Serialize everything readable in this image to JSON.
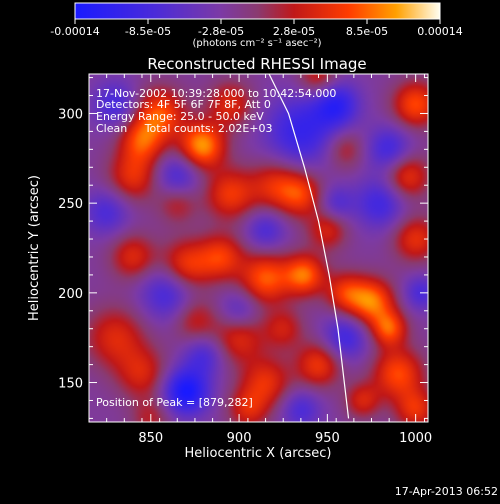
{
  "chart_data": {
    "type": "heatmap",
    "title": "Reconstructed RHESSI Image",
    "xlabel": "Heliocentric X (arcsec)",
    "ylabel": "Heliocentric Y (arcsec)",
    "xlim": [
      815,
      1007
    ],
    "ylim": [
      128,
      322
    ],
    "xticks": [
      "850",
      "900",
      "950",
      "1000"
    ],
    "yticks": [
      "150",
      "200",
      "250",
      "300"
    ],
    "colorbar": {
      "ticks": [
        "-0.00014",
        "-8.5e-05",
        "-2.8e-05",
        "2.8e-05",
        "8.5e-05",
        "0.00014"
      ],
      "unit_label": "(photons cm⁻² s⁻¹ asec⁻²)",
      "range": [
        -0.00014,
        0.00014
      ]
    },
    "annotations": {
      "time": "17-Nov-2002 10:39:28.000 to 10:42:54.000",
      "detectors": "Detectors: 4F 5F 6F 7F 8F, Att 0",
      "energy": "Energy Range: 25.0 - 50.0 keV",
      "clean": "Clean     Total counts: 2.02E+03",
      "peak": "Position of Peak = [879,282]"
    },
    "peak": [
      879,
      282
    ],
    "limb_curve": [
      [
        917,
        322
      ],
      [
        928,
        300
      ],
      [
        937,
        270
      ],
      [
        945,
        240
      ],
      [
        951,
        210
      ],
      [
        956,
        180
      ],
      [
        959,
        155
      ],
      [
        962,
        130
      ]
    ],
    "blobs": [
      [
        879,
        282,
        9,
        1.0
      ],
      [
        937,
        210,
        8,
        0.85
      ],
      [
        975,
        195,
        9,
        0.9
      ],
      [
        985,
        180,
        7,
        0.75
      ],
      [
        915,
        208,
        10,
        0.8
      ],
      [
        890,
        220,
        9,
        0.65
      ],
      [
        870,
        215,
        10,
        0.7
      ],
      [
        840,
        220,
        9,
        0.55
      ],
      [
        895,
        255,
        10,
        0.65
      ],
      [
        920,
        260,
        10,
        0.55
      ],
      [
        935,
        255,
        9,
        0.65
      ],
      [
        840,
        265,
        10,
        0.6
      ],
      [
        855,
        300,
        10,
        0.75
      ],
      [
        845,
        285,
        9,
        0.7
      ],
      [
        895,
        305,
        9,
        0.55
      ],
      [
        945,
        320,
        8,
        0.5
      ],
      [
        1000,
        305,
        9,
        0.75
      ],
      [
        995,
        265,
        9,
        0.65
      ],
      [
        960,
        280,
        8,
        0.4
      ],
      [
        1000,
        230,
        9,
        0.6
      ],
      [
        830,
        175,
        12,
        0.55
      ],
      [
        845,
        155,
        10,
        0.5
      ],
      [
        850,
        130,
        8,
        0.35
      ],
      [
        900,
        175,
        10,
        0.55
      ],
      [
        915,
        150,
        10,
        0.6
      ],
      [
        905,
        135,
        8,
        0.5
      ],
      [
        945,
        160,
        9,
        0.65
      ],
      [
        960,
        200,
        8,
        0.6
      ],
      [
        990,
        155,
        10,
        0.75
      ],
      [
        1000,
        135,
        8,
        0.6
      ],
      [
        970,
        140,
        7,
        0.5
      ],
      [
        925,
        180,
        8,
        0.45
      ],
      [
        875,
        185,
        9,
        0.45
      ],
      [
        950,
        235,
        8,
        0.5
      ],
      [
        865,
        250,
        8,
        0.4
      ],
      [
        870,
        145,
        9,
        -0.95
      ],
      [
        860,
        200,
        11,
        -0.55
      ],
      [
        900,
        190,
        8,
        -0.4
      ],
      [
        935,
        290,
        14,
        -0.65
      ],
      [
        955,
        305,
        9,
        -0.7
      ],
      [
        985,
        280,
        9,
        -0.55
      ],
      [
        980,
        250,
        10,
        -0.55
      ],
      [
        865,
        265,
        9,
        -0.5
      ],
      [
        825,
        245,
        9,
        -0.45
      ],
      [
        830,
        305,
        9,
        -0.5
      ],
      [
        960,
        175,
        9,
        -0.55
      ],
      [
        880,
        165,
        8,
        -0.45
      ],
      [
        935,
        135,
        8,
        -0.45
      ],
      [
        1003,
        200,
        7,
        -0.45
      ],
      [
        915,
        235,
        8,
        -0.45
      ],
      [
        955,
        250,
        7,
        -0.4
      ]
    ]
  },
  "footer": {
    "date": "17-Apr-2013 06:52"
  }
}
